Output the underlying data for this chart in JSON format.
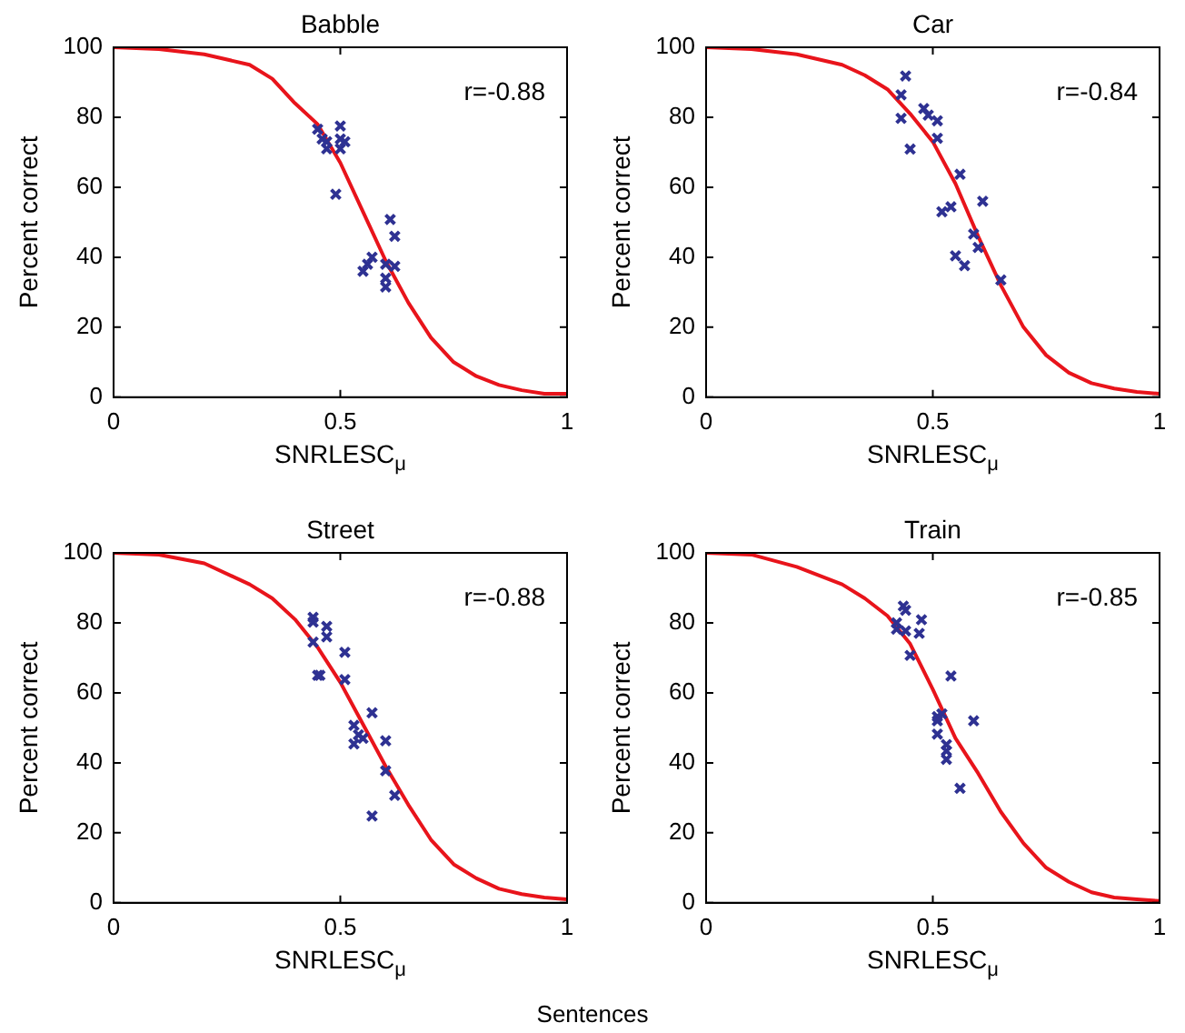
{
  "chart_data": [
    {
      "type": "scatter",
      "title": "Babble",
      "xlabel": "SNRLESC$_{μ}$",
      "ylabel": "Percent correct",
      "xlim": [
        0,
        1
      ],
      "ylim": [
        0,
        100
      ],
      "xticks": [
        0,
        0.5,
        1
      ],
      "yticks": [
        0,
        20,
        40,
        60,
        80,
        100
      ],
      "grid": false,
      "legend": false,
      "marker": "cross",
      "annotations": [
        "r=-0.88"
      ],
      "series": [
        {
          "color": "#2e3192",
          "x": [
            0.45,
            0.46,
            0.47,
            0.47,
            0.5,
            0.5,
            0.5,
            0.51,
            0.49,
            0.61,
            0.62,
            0.57,
            0.55,
            0.56,
            0.6,
            0.6,
            0.6,
            0.62
          ],
          "values": [
            76.6,
            73.8,
            71,
            73,
            77.5,
            73.8,
            71,
            73,
            58,
            50.8,
            46,
            40,
            36,
            38,
            38,
            34,
            31.5,
            37.4
          ]
        },
        {
          "type": "line",
          "color": "#e8141b",
          "marker": "none",
          "x": [
            0,
            0.1,
            0.2,
            0.3,
            0.35,
            0.4,
            0.45,
            0.5,
            0.55,
            0.6,
            0.65,
            0.7,
            0.75,
            0.8,
            0.85,
            0.9,
            0.95,
            1
          ],
          "values": [
            100,
            99.5,
            98,
            95,
            91,
            84,
            78,
            67,
            53,
            39,
            27,
            17,
            10,
            6,
            3.5,
            2,
            1,
            1
          ]
        }
      ]
    },
    {
      "type": "scatter",
      "title": "Car",
      "xlabel": "SNRLESC$_{μ}$",
      "ylabel": "Percent correct",
      "xlim": [
        0,
        1
      ],
      "ylim": [
        0,
        100
      ],
      "xticks": [
        0,
        0.5,
        1
      ],
      "yticks": [
        0,
        20,
        40,
        60,
        80,
        100
      ],
      "grid": false,
      "legend": false,
      "marker": "cross",
      "annotations": [
        "r=-0.84"
      ],
      "series": [
        {
          "color": "#2e3192",
          "x": [
            0.44,
            0.43,
            0.43,
            0.45,
            0.48,
            0.49,
            0.51,
            0.51,
            0.56,
            0.61,
            0.52,
            0.54,
            0.59,
            0.6,
            0.55,
            0.57,
            0.65
          ],
          "values": [
            91.8,
            86.4,
            79.7,
            70.9,
            82.5,
            80.6,
            79,
            74,
            63.7,
            56,
            53,
            54.4,
            46.6,
            42.8,
            40.4,
            37.6,
            33.5
          ]
        },
        {
          "type": "line",
          "color": "#e8141b",
          "marker": "none",
          "x": [
            0,
            0.1,
            0.2,
            0.3,
            0.35,
            0.4,
            0.45,
            0.5,
            0.55,
            0.6,
            0.65,
            0.7,
            0.75,
            0.8,
            0.85,
            0.9,
            0.95,
            1
          ],
          "values": [
            100,
            99.5,
            98,
            95,
            92,
            88,
            81,
            73,
            61,
            46,
            32,
            20,
            12,
            7,
            4,
            2.5,
            1.5,
            1
          ]
        }
      ]
    },
    {
      "type": "scatter",
      "title": "Street",
      "xlabel": "SNRLESC$_{μ}$",
      "ylabel": "Percent correct",
      "xlim": [
        0,
        1
      ],
      "ylim": [
        0,
        100
      ],
      "xticks": [
        0,
        0.5,
        1
      ],
      "yticks": [
        0,
        20,
        40,
        60,
        80,
        100
      ],
      "grid": false,
      "legend": false,
      "marker": "cross",
      "annotations": [
        "r=-0.88"
      ],
      "series": [
        {
          "color": "#2e3192",
          "x": [
            0.44,
            0.44,
            0.44,
            0.45,
            0.455,
            0.47,
            0.47,
            0.51,
            0.51,
            0.57,
            0.53,
            0.54,
            0.53,
            0.55,
            0.6,
            0.6,
            0.62,
            0.57
          ],
          "values": [
            81.6,
            80.2,
            74.5,
            65,
            65,
            79,
            76,
            71.6,
            63.8,
            54.3,
            50.7,
            48,
            45.4,
            47,
            46.3,
            37.7,
            30.7,
            24.8
          ]
        },
        {
          "type": "line",
          "color": "#e8141b",
          "marker": "none",
          "x": [
            0,
            0.1,
            0.2,
            0.3,
            0.35,
            0.4,
            0.45,
            0.5,
            0.55,
            0.6,
            0.65,
            0.7,
            0.75,
            0.8,
            0.85,
            0.9,
            0.95,
            1
          ],
          "values": [
            100,
            99.5,
            97,
            91,
            87,
            81,
            73,
            63,
            51,
            39,
            28,
            18,
            11,
            7,
            4,
            2.5,
            1.5,
            1
          ]
        }
      ]
    },
    {
      "type": "scatter",
      "title": "Train",
      "xlabel": "SNRLESC$_{μ}$",
      "ylabel": "Percent correct",
      "xlim": [
        0,
        1
      ],
      "ylim": [
        0,
        100
      ],
      "xticks": [
        0,
        0.5,
        1
      ],
      "yticks": [
        0,
        20,
        40,
        60,
        80,
        100
      ],
      "grid": false,
      "legend": false,
      "marker": "cross",
      "annotations": [
        "r=-0.85",
        "Sentences"
      ],
      "series": [
        {
          "color": "#2e3192",
          "x": [
            0.435,
            0.44,
            0.42,
            0.42,
            0.44,
            0.475,
            0.47,
            0.45,
            0.54,
            0.51,
            0.52,
            0.51,
            0.51,
            0.53,
            0.53,
            0.53,
            0.59,
            0.56
          ],
          "values": [
            84.8,
            83.6,
            80,
            78.2,
            77.7,
            80.9,
            77,
            70.7,
            64.8,
            53.2,
            54,
            52,
            48.2,
            45.2,
            43.4,
            41,
            52,
            32.7
          ]
        },
        {
          "type": "line",
          "color": "#e8141b",
          "marker": "none",
          "x": [
            0,
            0.1,
            0.2,
            0.3,
            0.35,
            0.4,
            0.45,
            0.5,
            0.55,
            0.6,
            0.65,
            0.7,
            0.75,
            0.8,
            0.85,
            0.9,
            0.95,
            1
          ],
          "values": [
            100,
            99.5,
            96,
            91,
            87,
            82,
            74,
            61,
            47,
            37,
            26,
            17,
            10,
            6,
            3,
            1.5,
            1,
            0.5
          ]
        }
      ]
    }
  ]
}
